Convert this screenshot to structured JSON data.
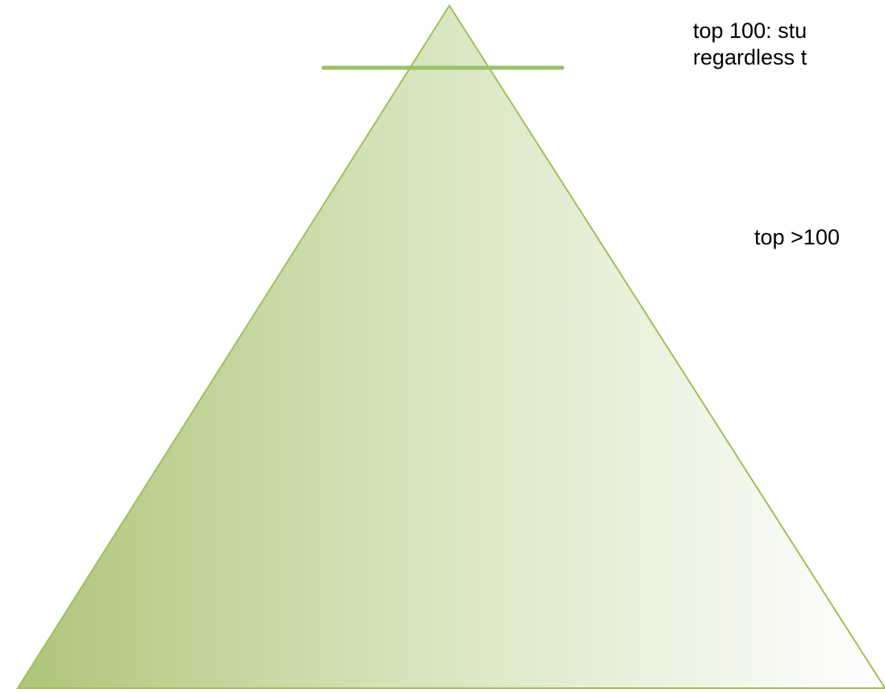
{
  "colors": {
    "pyramid_fill_dark": "#aec57a",
    "pyramid_fill_mid": "#d6e4bc",
    "pyramid_fill_light": "#ffffff",
    "pyramid_stroke": "#9fbf5a",
    "marker_line": "#9bc06a",
    "text": "#000000"
  },
  "labels": {
    "top_100": {
      "line1": "top 100: stu",
      "line2": "regardless t"
    },
    "top_over_100": {
      "line1": "top >100"
    }
  }
}
